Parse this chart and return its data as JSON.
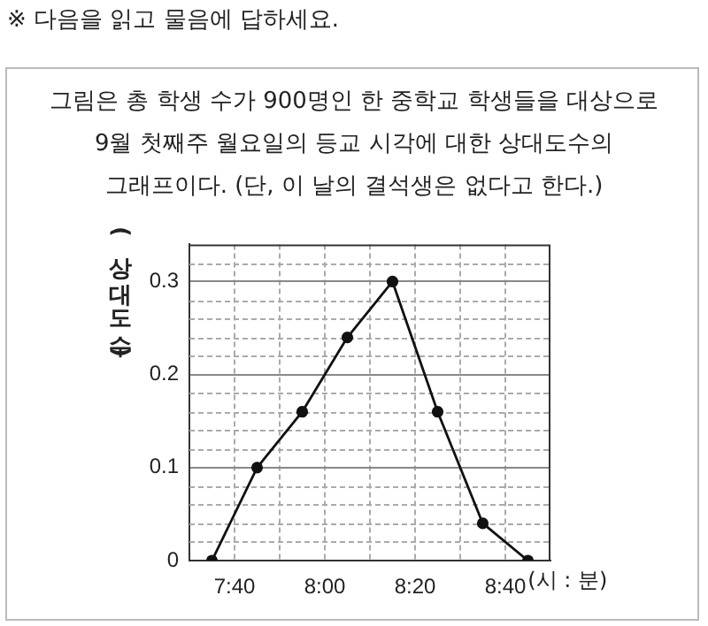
{
  "chart_data": {
    "type": "line",
    "title": "※ 다음을 읽고 물음에 답하세요.",
    "subtitle": "그림은 총 학생 수가 900명인 한 중학교 학생들을 대상으로\n9월 첫째주 월요일의 등교 시각에 대한 상대도수의\n그래프이다. (단, 이 날의 결석생은 없다고 한다.)",
    "xlabel": "(시 : 분)",
    "ylabel": "(상대도수)",
    "x": [
      7.583333,
      7.75,
      7.916667,
      8.083333,
      8.25,
      8.416667,
      8.583333,
      8.75
    ],
    "values": [
      0,
      0.1,
      0.16,
      0.24,
      0.3,
      0.16,
      0.04,
      0
    ],
    "color": "#111111",
    "marker": "circle",
    "line_style": "solid",
    "xlim": [
      7.5,
      8.833333
    ],
    "xticks": [
      {
        "value": 7.666667,
        "label": "7:40"
      },
      {
        "value": 7.833333,
        "label": null
      },
      {
        "value": 8,
        "label": "8:00"
      },
      {
        "value": 8.166667,
        "label": null
      },
      {
        "value": 8.333333,
        "label": "8:20"
      },
      {
        "value": 8.5,
        "label": null
      },
      {
        "value": 8.666667,
        "label": "8:40"
      }
    ],
    "ylim": [
      0,
      0.34
    ],
    "yticks": [
      0,
      {
        "value": 0.02,
        "label": null
      },
      {
        "value": 0.04,
        "label": null
      },
      {
        "value": 0.06,
        "label": null
      },
      {
        "value": 0.08,
        "label": null
      },
      0.1,
      {
        "value": 0.12,
        "label": null
      },
      {
        "value": 0.14,
        "label": null
      },
      {
        "value": 0.16,
        "label": null
      },
      {
        "value": 0.18,
        "label": null
      },
      0.2,
      {
        "value": 0.22,
        "label": null
      },
      {
        "value": 0.24,
        "label": null
      },
      {
        "value": 0.26,
        "label": null
      },
      {
        "value": 0.28,
        "label": null
      },
      0.3,
      {
        "value": 0.32,
        "label": null
      }
    ],
    "grid": true
  }
}
